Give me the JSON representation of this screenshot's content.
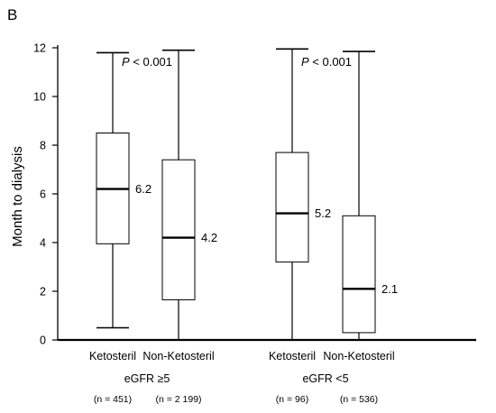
{
  "chart_data": {
    "type": "box",
    "panel_label": "B",
    "ylabel": "Month to dialysis",
    "xlabel": "",
    "ylim": [
      0,
      12
    ],
    "yticks": [
      0,
      2,
      4,
      6,
      8,
      10,
      12
    ],
    "grid": false,
    "groups": [
      {
        "label": "eGFR ≥5",
        "p_prefix": "P",
        "p_value": " < 0.001",
        "series": [
          {
            "category": "Ketosteril",
            "n_label": "(n = 451)",
            "min": 0.5,
            "q1": 3.95,
            "median": 6.2,
            "q3": 8.5,
            "max": 11.8,
            "median_label": "6.2"
          },
          {
            "category": "Non-Ketosteril",
            "n_label": "(n = 2 199)",
            "min": 0,
            "q1": 1.65,
            "median": 4.2,
            "q3": 7.4,
            "max": 11.9,
            "median_label": "4.2"
          }
        ]
      },
      {
        "label": "eGFR <5",
        "p_prefix": "P",
        "p_value": " < 0.001",
        "series": [
          {
            "category": "Ketosteril",
            "n_label": "(n = 96)",
            "min": 0,
            "q1": 3.2,
            "median": 5.2,
            "q3": 7.7,
            "max": 11.95,
            "median_label": "5.2"
          },
          {
            "category": "Non-Ketosteril",
            "n_label": "(n = 536)",
            "min": 0,
            "q1": 0.3,
            "median": 2.1,
            "q3": 5.1,
            "max": 11.85,
            "median_label": "2.1"
          }
        ]
      }
    ]
  }
}
